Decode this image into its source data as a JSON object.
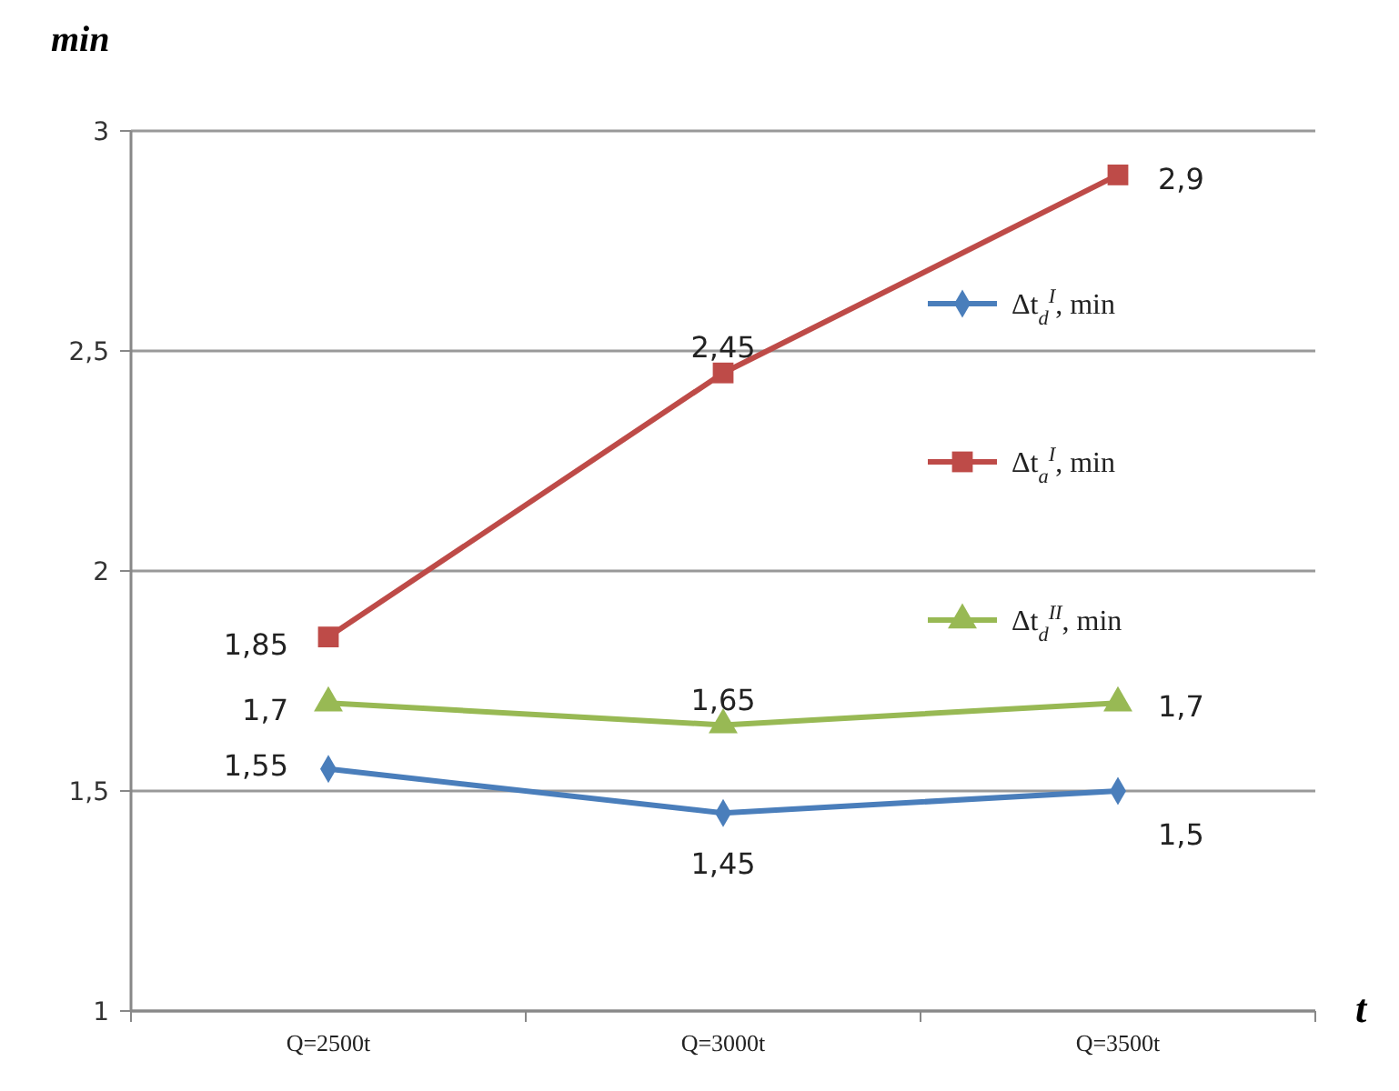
{
  "chart_data": {
    "type": "line",
    "ylabel": "min",
    "xlabel": "t",
    "categories": [
      "Q=2500t",
      "Q=3000t",
      "Q=3500t"
    ],
    "ylim": [
      1,
      3
    ],
    "yticks": [
      1,
      {
        "value": 1.5,
        "label": "1,5"
      },
      2,
      {
        "value": 2.5,
        "label": "2,5"
      },
      3
    ],
    "grid": "y",
    "legend": "right",
    "series": [
      {
        "name": "Δt$_{d}$$^{I}$, min",
        "color": "#4a7ebb",
        "marker": "diamond",
        "values": [
          1.55,
          1.45,
          1.5
        ],
        "value_labels": [
          "1,55",
          "1,45",
          "1,5"
        ]
      },
      {
        "name": "Δt$_{a}$$^{I}$, min",
        "color": "#be4b48",
        "marker": "square",
        "values": [
          1.85,
          2.45,
          2.9
        ],
        "value_labels": [
          "1,85",
          "2,45",
          "2,9"
        ]
      },
      {
        "name": "Δt$_{d}$$^{II}$, min",
        "color": "#98b954",
        "marker": "triangle",
        "values": [
          1.7,
          1.65,
          1.7
        ],
        "value_labels": [
          "1,7",
          "1,65",
          "1,7"
        ]
      }
    ]
  }
}
